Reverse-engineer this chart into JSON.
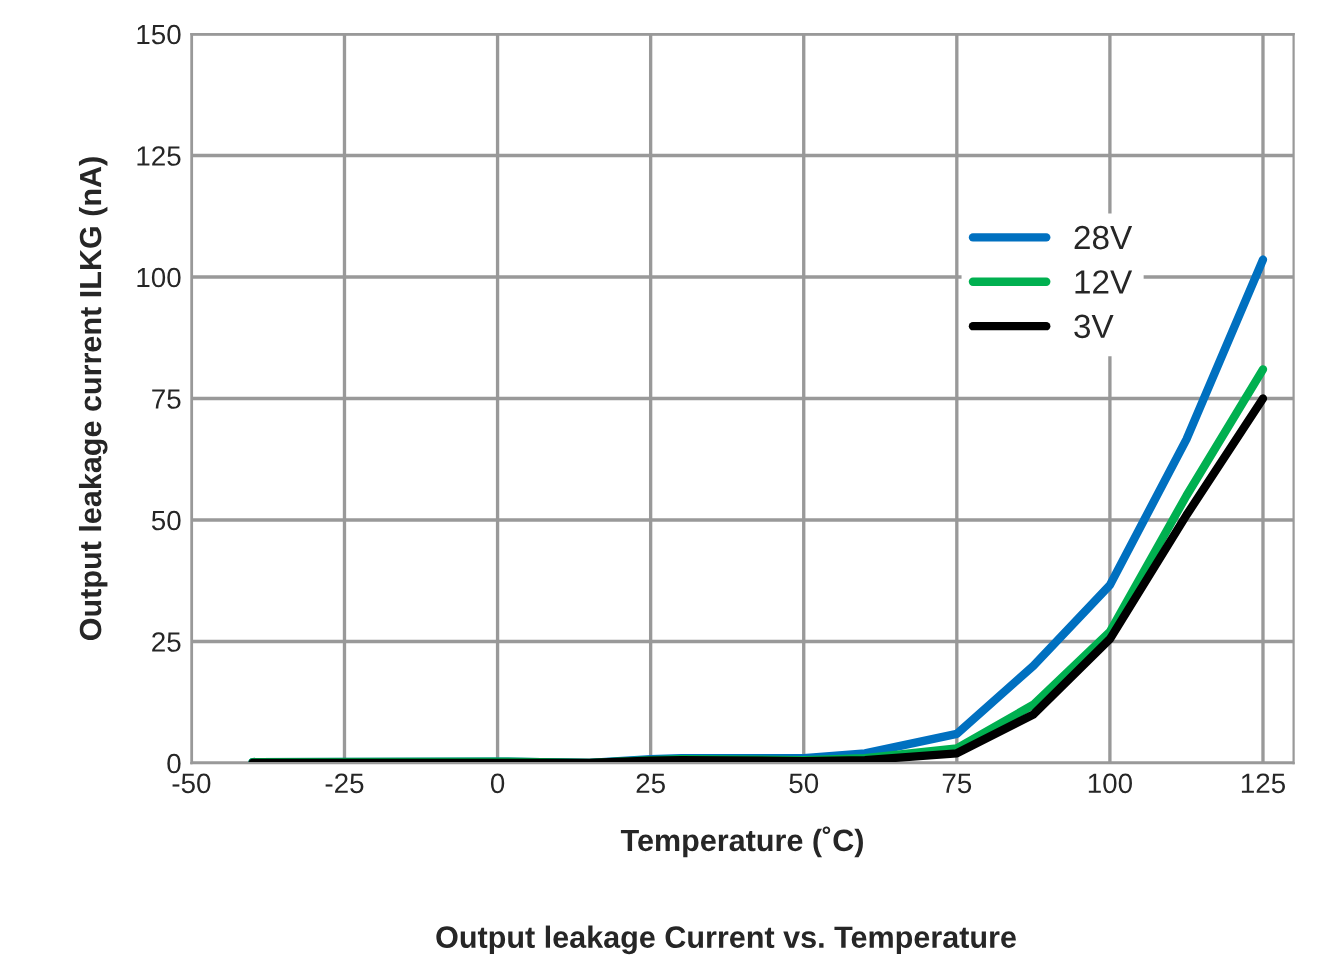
{
  "chart_data": {
    "type": "line",
    "title": "Output leakage Current vs. Temperature",
    "xlabel": "Temperature (˚C)",
    "ylabel": "Output leakage current ILKG (nA)",
    "xlim": [
      -50,
      130
    ],
    "ylim": [
      0,
      150
    ],
    "xticks": [
      -50,
      -25,
      0,
      25,
      50,
      75,
      100,
      125
    ],
    "yticks": [
      0,
      25,
      50,
      75,
      100,
      125,
      150
    ],
    "grid": true,
    "legend": "top right",
    "line_style": "solid",
    "marker": "none",
    "series": [
      {
        "name": "28V",
        "color": "#0070c0",
        "x": [
          -40,
          0,
          15,
          25,
          30,
          50,
          60,
          75,
          87.5,
          100,
          112.5,
          125
        ],
        "values": [
          0.2,
          0.3,
          0,
          0.8,
          1,
          1,
          2,
          6,
          20,
          36.6,
          66.6,
          103.6
        ]
      },
      {
        "name": "12V",
        "color": "#00b050",
        "x": [
          -40,
          0,
          15,
          25,
          30,
          50,
          60,
          75,
          87.5,
          100,
          112.5,
          125
        ],
        "values": [
          0.2,
          0.3,
          0,
          0.6,
          0.8,
          0.6,
          1,
          3,
          12,
          27,
          55,
          81
        ]
      },
      {
        "name": "3V",
        "color": "#000000",
        "x": [
          -40,
          0,
          15,
          25,
          30,
          50,
          60,
          75,
          87.5,
          100,
          112.5,
          125
        ],
        "values": [
          0,
          0,
          0,
          0.5,
          0.6,
          0.4,
          0.6,
          2,
          10,
          25.5,
          51,
          75
        ]
      }
    ]
  }
}
